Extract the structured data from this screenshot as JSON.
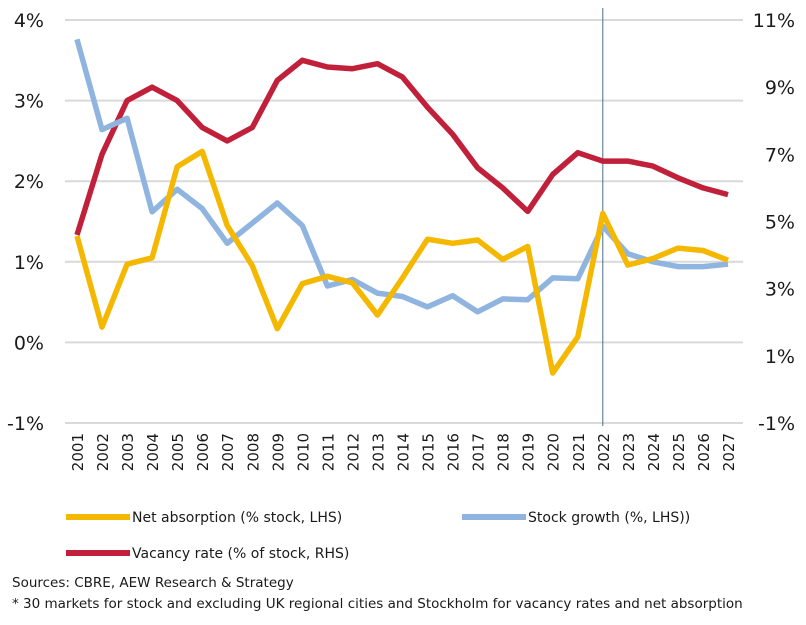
{
  "chart_data": {
    "type": "line",
    "categories": [
      "2001",
      "2002",
      "2003",
      "2004",
      "2005",
      "2006",
      "2007",
      "2008",
      "2009",
      "2010",
      "2011",
      "2012",
      "2013",
      "2014",
      "2015",
      "2016",
      "2017",
      "2018",
      "2019",
      "2020",
      "2021",
      "2022",
      "2023",
      "2024",
      "2025",
      "2026",
      "2027"
    ],
    "y_left": {
      "ticks": [
        4,
        3,
        2,
        1,
        0,
        -1
      ],
      "tick_labels": [
        "4%",
        "3%",
        "2%",
        "1%",
        "0%",
        "-1%"
      ],
      "range": [
        -1,
        4
      ]
    },
    "y_right": {
      "ticks": [
        11,
        9,
        7,
        5,
        3,
        1,
        -1
      ],
      "tick_labels": [
        "11%",
        "9%",
        "7%",
        "5%",
        "3%",
        "1%",
        "-1%"
      ],
      "range": [
        -1,
        11
      ]
    },
    "forecast_divider_category": "2022",
    "grid": "horizontal",
    "legend_position": "bottom",
    "series": [
      {
        "name": "Net absorption (% stock, LHS)",
        "axis": "left",
        "color": "#F5B800",
        "values": [
          1.32,
          0.19,
          0.97,
          1.05,
          2.18,
          2.37,
          1.45,
          0.95,
          0.17,
          0.73,
          0.82,
          0.74,
          0.34,
          0.8,
          1.28,
          1.23,
          1.27,
          1.03,
          1.19,
          -0.38,
          0.07,
          1.6,
          0.96,
          1.04,
          1.17,
          1.14,
          1.02
        ]
      },
      {
        "name": "Stock growth (%, LHS))",
        "axis": "left",
        "color": "#8FB4E0",
        "values": [
          3.76,
          2.64,
          2.78,
          1.62,
          1.9,
          1.66,
          1.23,
          1.48,
          1.73,
          1.45,
          0.7,
          0.78,
          0.61,
          0.57,
          0.44,
          0.58,
          0.38,
          0.54,
          0.53,
          0.8,
          0.79,
          1.44,
          1.1,
          1.0,
          0.94,
          0.94,
          0.97
        ]
      },
      {
        "name": "Vacancy rate (% of stock, RHS)",
        "axis": "right",
        "color": "#C0203A",
        "values": [
          4.6,
          7.0,
          8.6,
          9.0,
          8.6,
          7.8,
          7.4,
          7.8,
          9.2,
          9.8,
          9.6,
          9.55,
          9.7,
          9.3,
          8.4,
          7.6,
          6.6,
          6.0,
          5.3,
          6.4,
          7.05,
          6.8,
          6.8,
          6.65,
          6.3,
          6.0,
          5.8
        ]
      }
    ]
  },
  "sources_text": "Sources: CBRE, AEW Research & Strategy",
  "footnote_text": "* 30 markets for stock and excluding UK regional cities and Stockholm for vacancy rates and net absorption"
}
